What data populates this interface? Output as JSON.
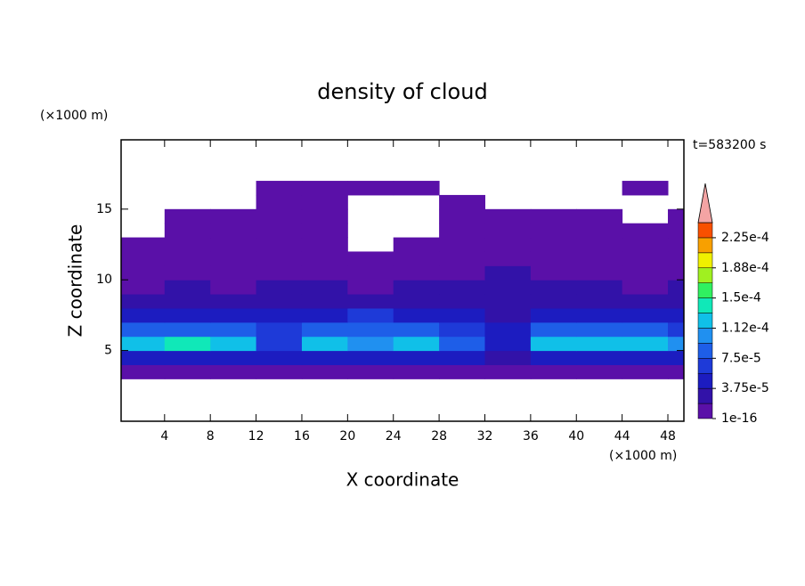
{
  "chart_data": {
    "type": "contour",
    "title": "density of cloud",
    "xlabel": "X coordinate",
    "ylabel": "Z coordinate",
    "xunit": "(×1000 m)",
    "yunit": "(×1000 m)",
    "annotation": "t=583200 s",
    "xlim": [
      0.2,
      49.4
    ],
    "ylim": [
      0,
      19.9
    ],
    "xticks": [
      4,
      8,
      12,
      16,
      20,
      24,
      28,
      32,
      36,
      40,
      44,
      48
    ],
    "yticks": [
      5,
      10,
      15
    ],
    "x": [
      2,
      6,
      10,
      14,
      18,
      22,
      26,
      30,
      34,
      38,
      42,
      46,
      50
    ],
    "z": [
      3.5,
      4.5,
      5.5,
      6.5,
      7.5,
      8.5,
      9.5,
      10.5,
      11.5,
      12.5,
      13.5,
      14.5,
      15.5,
      16.5
    ],
    "values": [
      [
        1e-06,
        1e-06,
        1e-06,
        1e-06,
        1e-06,
        1e-06,
        1e-06,
        1e-06,
        1e-06,
        1e-06,
        1e-06,
        1e-06,
        1e-06
      ],
      [
        3.8e-05,
        4e-05,
        3.8e-05,
        3.8e-05,
        4e-05,
        3.8e-05,
        3.8e-05,
        3.8e-05,
        3e-05,
        4e-05,
        3.8e-05,
        4e-05,
        3.8e-05
      ],
      [
        0.00012,
        0.00014,
        0.00013,
        7e-05,
        0.00012,
        0.00011,
        0.00012,
        8e-05,
        5e-05,
        0.00012,
        0.00013,
        0.00012,
        0.0001
      ],
      [
        8e-05,
        9e-05,
        8e-05,
        6e-05,
        9e-05,
        8e-05,
        8e-05,
        6e-05,
        4e-05,
        9e-05,
        8e-05,
        9e-05,
        7e-05
      ],
      [
        4e-05,
        5e-05,
        4e-05,
        4e-05,
        5e-05,
        6e-05,
        4e-05,
        4e-05,
        3e-05,
        5e-05,
        4e-05,
        5e-05,
        4e-05
      ],
      [
        2e-05,
        2e-05,
        2e-05,
        2e-05,
        2e-05,
        2e-05,
        2e-05,
        2e-05,
        2e-05,
        2e-05,
        2e-05,
        2e-05,
        2e-05
      ],
      [
        1e-06,
        2e-05,
        1e-06,
        2e-05,
        2e-05,
        1e-06,
        2e-05,
        2e-05,
        2e-05,
        2e-05,
        2e-05,
        1e-06,
        2e-05
      ],
      [
        1e-06,
        1e-06,
        1e-06,
        1e-06,
        1e-06,
        1e-06,
        1e-06,
        1e-06,
        2e-05,
        1e-06,
        1e-06,
        1e-06,
        1e-06
      ],
      [
        1e-06,
        1e-06,
        1e-06,
        1e-06,
        1e-06,
        1e-06,
        1e-06,
        1e-06,
        1e-06,
        1e-06,
        1e-06,
        1e-06,
        1e-06
      ],
      [
        1e-06,
        1e-06,
        1e-06,
        1e-06,
        1e-06,
        null,
        1e-06,
        1e-06,
        1e-06,
        1e-06,
        1e-06,
        1e-06,
        1e-06
      ],
      [
        null,
        1e-06,
        1e-06,
        1e-06,
        1e-06,
        null,
        null,
        1e-06,
        1e-06,
        1e-06,
        1e-06,
        1e-06,
        1e-06
      ],
      [
        null,
        1e-06,
        1e-06,
        1e-06,
        1e-06,
        null,
        null,
        1e-06,
        1e-06,
        1e-06,
        1e-06,
        null,
        1e-06
      ],
      [
        null,
        null,
        null,
        1e-06,
        1e-06,
        null,
        null,
        1e-06,
        null,
        null,
        null,
        null,
        null
      ],
      [
        null,
        null,
        null,
        1e-06,
        1e-06,
        1e-06,
        1e-06,
        null,
        null,
        null,
        null,
        1e-06,
        null
      ]
    ],
    "levels": [
      1e-16,
      1.875e-05,
      3.75e-05,
      5.625e-05,
      7.5e-05,
      9.375e-05,
      0.0001125,
      0.00013125,
      0.00015,
      0.00016875,
      0.0001875,
      0.00020625,
      0.000225,
      0.00024375
    ],
    "colors": [
      "#5a10a8",
      "#3212a8",
      "#1c1cc0",
      "#1e3ad8",
      "#1e5ee8",
      "#2090f0",
      "#10c0e8",
      "#10e8b8",
      "#30f060",
      "#a0f020",
      "#f0f000",
      "#f8a000",
      "#f85000"
    ],
    "extend_color": "#f4a4a4",
    "colorbar_ticks": [
      {
        "value": 1e-16,
        "label": "1e-16"
      },
      {
        "value": 3.75e-05,
        "label": "3.75e-5"
      },
      {
        "value": 7.5e-05,
        "label": "7.5e-5"
      },
      {
        "value": 0.0001125,
        "label": "1.12e-4"
      },
      {
        "value": 0.00015,
        "label": "1.5e-4"
      },
      {
        "value": 0.0001875,
        "label": "1.88e-4"
      },
      {
        "value": 0.000225,
        "label": "2.25e-4"
      }
    ]
  }
}
